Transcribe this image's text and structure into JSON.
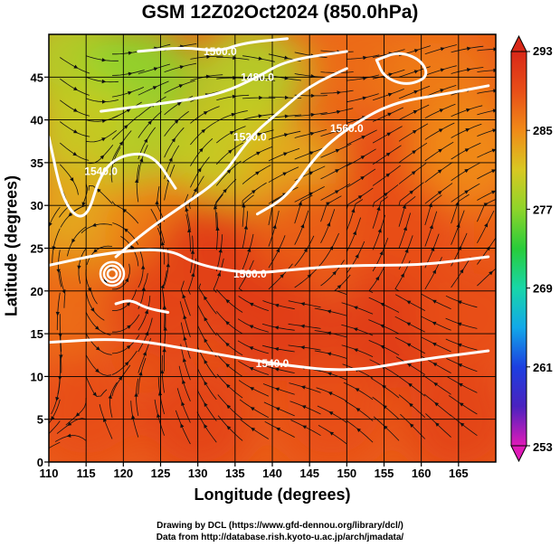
{
  "title": "GSM 12Z02Oct2024 (850.0hPa)",
  "credits": {
    "line1": "Drawing by DCL (https://www.gfd-dennou.org/library/dcl/)",
    "line2": "Data from http://database.rish.kyoto-u.ac.jp/arch/jmadata/"
  },
  "chart_data": {
    "type": "heatmap",
    "title": "GSM 12Z02Oct2024 (850.0hPa)",
    "xlabel": "Longitude (degrees)",
    "ylabel": "Latitude  (degrees)",
    "xlim": [
      110,
      170
    ],
    "ylim": [
      0,
      50
    ],
    "x_ticks": [
      110,
      115,
      120,
      125,
      130,
      135,
      140,
      145,
      150,
      155,
      160,
      165
    ],
    "y_ticks": [
      0,
      5,
      10,
      15,
      20,
      25,
      30,
      35,
      40,
      45
    ],
    "grid": true,
    "colorbar": {
      "ticks": [
        253,
        261,
        269,
        277,
        285,
        293
      ],
      "range": [
        253,
        293
      ],
      "colors": [
        "#e01ab8",
        "#4a22bf",
        "#1c3fe0",
        "#12a8e8",
        "#18d6a8",
        "#28cc3a",
        "#8ed42a",
        "#d8c822",
        "#f08a18",
        "#e84e18",
        "#d82818"
      ]
    },
    "field_samples": [
      {
        "lon": 113,
        "lat": 47,
        "value": 279
      },
      {
        "lon": 122,
        "lat": 45,
        "value": 277
      },
      {
        "lon": 137,
        "lat": 45,
        "value": 279
      },
      {
        "lon": 152,
        "lat": 47,
        "value": 287
      },
      {
        "lon": 162,
        "lat": 44,
        "value": 286
      },
      {
        "lon": 115,
        "lat": 38,
        "value": 280
      },
      {
        "lon": 125,
        "lat": 35,
        "value": 279
      },
      {
        "lon": 135,
        "lat": 37,
        "value": 280
      },
      {
        "lon": 143,
        "lat": 33,
        "value": 283
      },
      {
        "lon": 156,
        "lat": 34,
        "value": 289
      },
      {
        "lon": 166,
        "lat": 36,
        "value": 285
      },
      {
        "lon": 114,
        "lat": 28,
        "value": 283
      },
      {
        "lon": 125,
        "lat": 27,
        "value": 286
      },
      {
        "lon": 132,
        "lat": 24,
        "value": 291
      },
      {
        "lon": 145,
        "lat": 26,
        "value": 288
      },
      {
        "lon": 158,
        "lat": 26,
        "value": 289
      },
      {
        "lon": 112,
        "lat": 18,
        "value": 287
      },
      {
        "lon": 125,
        "lat": 18,
        "value": 290
      },
      {
        "lon": 140,
        "lat": 16,
        "value": 291
      },
      {
        "lon": 155,
        "lat": 15,
        "value": 291
      },
      {
        "lon": 167,
        "lat": 17,
        "value": 289
      },
      {
        "lon": 115,
        "lat": 6,
        "value": 289
      },
      {
        "lon": 130,
        "lat": 5,
        "value": 290
      },
      {
        "lon": 148,
        "lat": 6,
        "value": 289
      },
      {
        "lon": 165,
        "lat": 5,
        "value": 290
      }
    ],
    "contours": [
      {
        "label": "1560.0",
        "points": [
          [
            110,
            23
          ],
          [
            118,
            24.5
          ],
          [
            126,
            25
          ],
          [
            130,
            23
          ],
          [
            137,
            22
          ],
          [
            143,
            22.5
          ],
          [
            150,
            23
          ],
          [
            160,
            23
          ],
          [
            169,
            24
          ]
        ]
      },
      {
        "label": "1560.0",
        "points": [
          [
            138,
            29
          ],
          [
            142,
            31
          ],
          [
            146,
            36
          ],
          [
            150,
            39
          ],
          [
            156,
            42
          ],
          [
            163,
            43
          ],
          [
            169,
            44
          ]
        ]
      },
      {
        "label": "1520.0",
        "points": [
          [
            119,
            24
          ],
          [
            123,
            27
          ],
          [
            128,
            30
          ],
          [
            133,
            33
          ],
          [
            137,
            38
          ],
          [
            141,
            41
          ],
          [
            145,
            44
          ],
          [
            150,
            46
          ]
        ]
      },
      {
        "label": "1480.0",
        "points": [
          [
            117,
            41
          ],
          [
            126,
            42
          ],
          [
            133,
            43
          ],
          [
            138,
            45
          ],
          [
            142,
            47
          ],
          [
            150,
            48
          ]
        ]
      },
      {
        "label": "1500.0",
        "points": [
          [
            122,
            48
          ],
          [
            128,
            48.5
          ],
          [
            133,
            48
          ],
          [
            136,
            49
          ],
          [
            142,
            49.5
          ]
        ]
      },
      {
        "label": "1540.0",
        "points": [
          [
            110,
            14
          ],
          [
            120,
            14.5
          ],
          [
            130,
            13
          ],
          [
            140,
            11.5
          ],
          [
            150,
            10.5
          ],
          [
            160,
            12
          ],
          [
            169,
            13
          ]
        ]
      },
      {
        "label": "1540.0",
        "points": [
          [
            110,
            38
          ],
          [
            112,
            30
          ],
          [
            115,
            28
          ],
          [
            117,
            34
          ],
          [
            120,
            36
          ],
          [
            124,
            36
          ],
          [
            127,
            32
          ]
        ]
      },
      {
        "label": "",
        "points": [
          [
            119,
            18.5
          ],
          [
            121,
            19
          ],
          [
            123,
            18
          ],
          [
            126,
            17.5
          ]
        ]
      },
      {
        "label": "",
        "points": [
          [
            154,
            47
          ],
          [
            157,
            48
          ],
          [
            160,
            47
          ],
          [
            161,
            45
          ],
          [
            158,
            44
          ],
          [
            155,
            45
          ],
          [
            154,
            47
          ]
        ]
      }
    ],
    "cyclone_centers": [
      {
        "lon": 118.5,
        "lat": 22
      }
    ]
  },
  "icons": [
    "colorbar-up-triangle",
    "colorbar-down-triangle"
  ]
}
